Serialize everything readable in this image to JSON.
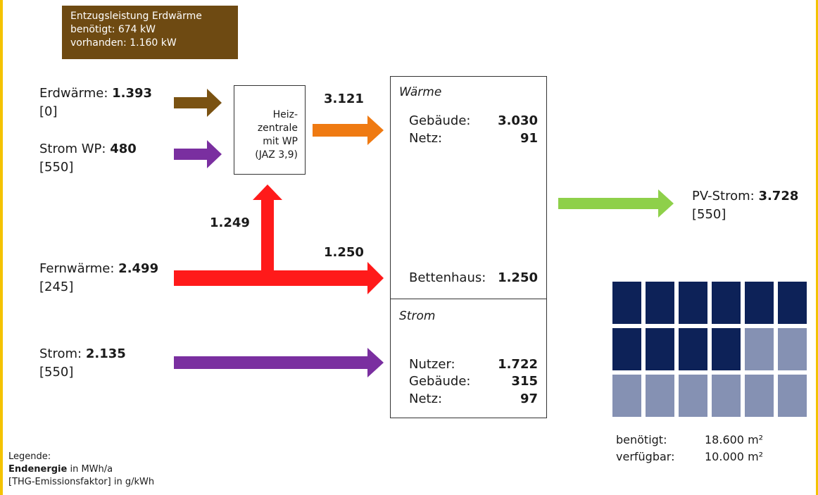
{
  "info_box": {
    "line1": "Entzugsleistung Erdwärme",
    "line2": "benötigt: 674 kW",
    "line3": "vorhanden: 1.160 kW"
  },
  "sources": {
    "erdwaerme": {
      "label": "Erdwärme: ",
      "value": "1.393",
      "factor": "[0]"
    },
    "strom_wp": {
      "label": "Strom WP: ",
      "value": "480",
      "factor": "[550]"
    },
    "fernwaerme": {
      "label": "Fernwärme: ",
      "value": "2.499",
      "factor": "[245]"
    },
    "strom": {
      "label": "Strom: ",
      "value": "2.135",
      "factor": "[550]"
    },
    "pv": {
      "label": "PV-Strom: ",
      "value": "3.728",
      "factor": "[550]"
    }
  },
  "heizzentrale": {
    "line1": "Heiz-",
    "line2": "zentrale",
    "line3": "mit WP",
    "line4": "(JAZ 3,9)"
  },
  "flows": {
    "hz_out": "3.121",
    "fw_up": "1.249",
    "fw_right": "1.250"
  },
  "waerme_box": {
    "title": "Wärme",
    "rows": [
      {
        "label": "Gebäude:",
        "value": "3.030"
      },
      {
        "label": "Netz:",
        "value": "91"
      },
      {
        "label": "Bettenhaus:",
        "value": "1.250"
      }
    ]
  },
  "strom_box": {
    "title": "Strom",
    "rows": [
      {
        "label": "Nutzer:",
        "value": "1.722"
      },
      {
        "label": "Gebäude:",
        "value": "315"
      },
      {
        "label": "Netz:",
        "value": "97"
      }
    ]
  },
  "pv_area": {
    "needed_label": "benötigt:",
    "needed_value": "18.600 m²",
    "available_label": "verfügbar:",
    "available_value": "10.000 m²",
    "modules_total": 18,
    "modules_dark": 10
  },
  "legend": {
    "title": "Legende:",
    "line2_bold": "Endenergie",
    "line2_rest": " in MWh/a",
    "line3": "[THG-Emissionsfaktor] in g/kWh"
  },
  "colors": {
    "brown": "#7a5212",
    "purple": "#7a2fa0",
    "orange": "#ef7a12",
    "red": "#ff1a1a",
    "green": "#8ed04a",
    "panel_dark": "#0d2258",
    "panel_light": "#8591b3",
    "info_bg": "#6e4a12"
  }
}
